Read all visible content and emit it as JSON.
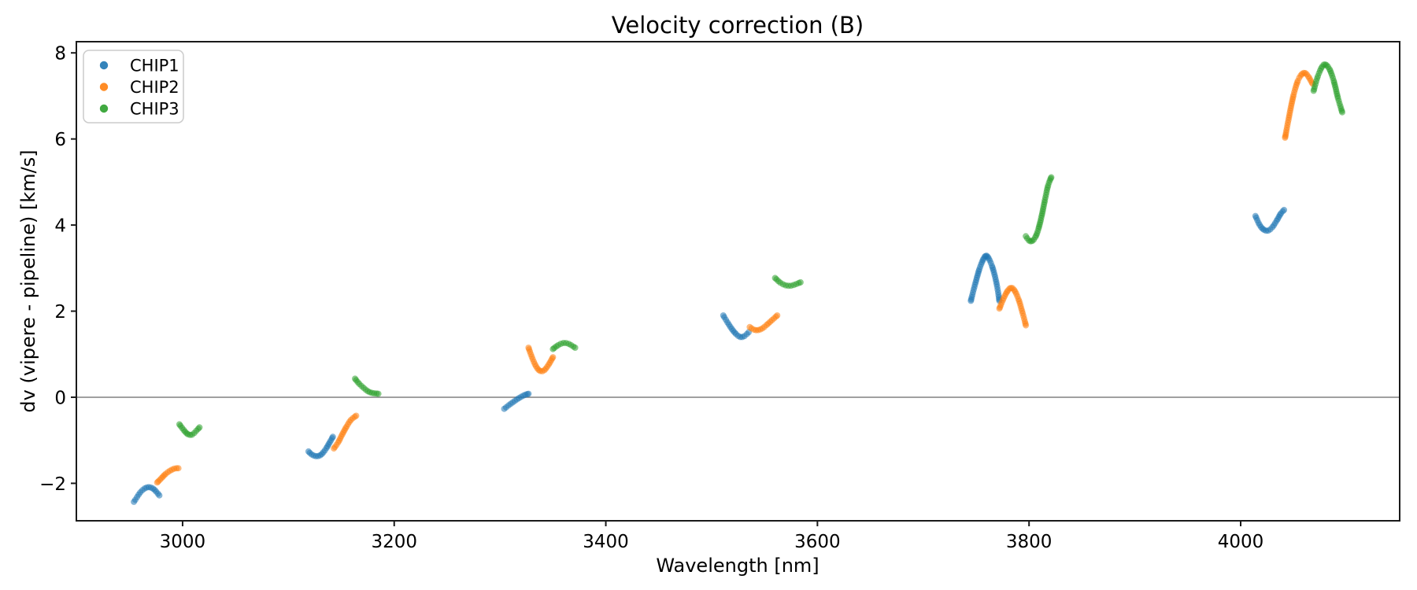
{
  "figure": {
    "background": "#ffffff",
    "spine_color": "#1a1a1a"
  },
  "legend": {
    "position": "upper-left",
    "border_color": "#cccccc",
    "background": "#ffffff",
    "items": [
      {
        "label": "CHIP1",
        "color": "#1f77b4"
      },
      {
        "label": "CHIP2",
        "color": "#ff7f0e"
      },
      {
        "label": "CHIP3",
        "color": "#2ca02c"
      }
    ]
  },
  "chart_data": {
    "type": "scatter",
    "title": "Velocity correction (B)",
    "xlabel": "Wavelength [nm]",
    "ylabel": "dv (vipere - pipeline) [km/s]",
    "xlim": [
      2899.6,
      4150.3
    ],
    "ylim": [
      -2.87,
      8.26
    ],
    "xticks": [
      3000,
      3200,
      3400,
      3600,
      3800,
      4000
    ],
    "xtick_labels": [
      "3000",
      "3200",
      "3400",
      "3600",
      "3800",
      "4000"
    ],
    "yticks": [
      -2,
      0,
      2,
      4,
      6,
      8
    ],
    "ytick_labels": [
      "−2",
      "0",
      "2",
      "4",
      "6",
      "8"
    ],
    "grid": false,
    "zero_line": {
      "y": 0,
      "color": "#808080"
    },
    "legend_position": "upper-left",
    "marker": {
      "radius": 4,
      "opacity": 0.55
    },
    "series": [
      {
        "name": "CHIP1",
        "color": "#1f77b4",
        "segments": [
          [
            [
              2954,
              -2.43
            ],
            [
              2957,
              -2.32
            ],
            [
              2960,
              -2.21
            ],
            [
              2964,
              -2.12
            ],
            [
              2968,
              -2.09
            ],
            [
              2972,
              -2.12
            ],
            [
              2975,
              -2.19
            ],
            [
              2978,
              -2.28
            ]
          ],
          [
            [
              3119,
              -1.26
            ],
            [
              3122,
              -1.33
            ],
            [
              3126,
              -1.37
            ],
            [
              3130,
              -1.35
            ],
            [
              3133,
              -1.28
            ],
            [
              3136,
              -1.18
            ],
            [
              3139,
              -1.05
            ],
            [
              3142,
              -0.92
            ]
          ],
          [
            [
              3304,
              -0.27
            ],
            [
              3308,
              -0.19
            ],
            [
              3312,
              -0.12
            ],
            [
              3316,
              -0.05
            ],
            [
              3320,
              0.01
            ],
            [
              3324,
              0.06
            ],
            [
              3327,
              0.08
            ]
          ],
          [
            [
              3511,
              1.9
            ],
            [
              3515,
              1.74
            ],
            [
              3519,
              1.59
            ],
            [
              3523,
              1.47
            ],
            [
              3527,
              1.4
            ],
            [
              3531,
              1.42
            ],
            [
              3535,
              1.51
            ]
          ],
          [
            [
              3745,
              2.24
            ],
            [
              3749,
              2.62
            ],
            [
              3753,
              2.97
            ],
            [
              3757,
              3.22
            ],
            [
              3759,
              3.28
            ],
            [
              3761,
              3.26
            ],
            [
              3765,
              3.05
            ],
            [
              3769,
              2.68
            ],
            [
              3772,
              2.24
            ]
          ],
          [
            [
              4014,
              4.21
            ],
            [
              4018,
              4.0
            ],
            [
              4022,
              3.89
            ],
            [
              4026,
              3.87
            ],
            [
              4030,
              3.95
            ],
            [
              4034,
              4.1
            ],
            [
              4038,
              4.27
            ],
            [
              4041,
              4.35
            ]
          ]
        ]
      },
      {
        "name": "CHIP2",
        "color": "#ff7f0e",
        "segments": [
          [
            [
              2976,
              -1.98
            ],
            [
              2980,
              -1.88
            ],
            [
              2984,
              -1.78
            ],
            [
              2988,
              -1.71
            ],
            [
              2992,
              -1.66
            ],
            [
              2996,
              -1.65
            ]
          ],
          [
            [
              3143,
              -1.19
            ],
            [
              3147,
              -1.05
            ],
            [
              3151,
              -0.86
            ],
            [
              3155,
              -0.68
            ],
            [
              3159,
              -0.53
            ],
            [
              3164,
              -0.43
            ]
          ],
          [
            [
              3327,
              1.15
            ],
            [
              3330,
              0.94
            ],
            [
              3334,
              0.72
            ],
            [
              3338,
              0.61
            ],
            [
              3342,
              0.63
            ],
            [
              3346,
              0.76
            ],
            [
              3350,
              0.93
            ]
          ],
          [
            [
              3536,
              1.63
            ],
            [
              3540,
              1.57
            ],
            [
              3544,
              1.56
            ],
            [
              3548,
              1.6
            ],
            [
              3552,
              1.68
            ],
            [
              3557,
              1.79
            ],
            [
              3562,
              1.9
            ]
          ],
          [
            [
              3772,
              2.06
            ],
            [
              3776,
              2.3
            ],
            [
              3780,
              2.48
            ],
            [
              3783,
              2.54
            ],
            [
              3786,
              2.49
            ],
            [
              3790,
              2.28
            ],
            [
              3794,
              1.95
            ],
            [
              3797,
              1.67
            ]
          ],
          [
            [
              4042,
              6.03
            ],
            [
              4046,
              6.55
            ],
            [
              4050,
              7.02
            ],
            [
              4054,
              7.35
            ],
            [
              4058,
              7.51
            ],
            [
              4061,
              7.53
            ],
            [
              4064,
              7.45
            ],
            [
              4068,
              7.28
            ]
          ]
        ]
      },
      {
        "name": "CHIP3",
        "color": "#2ca02c",
        "segments": [
          [
            [
              2997,
              -0.63
            ],
            [
              3001,
              -0.76
            ],
            [
              3005,
              -0.86
            ],
            [
              3009,
              -0.87
            ],
            [
              3013,
              -0.78
            ],
            [
              3016,
              -0.7
            ]
          ],
          [
            [
              3163,
              0.43
            ],
            [
              3167,
              0.31
            ],
            [
              3171,
              0.22
            ],
            [
              3175,
              0.14
            ],
            [
              3179,
              0.1
            ],
            [
              3185,
              0.08
            ]
          ],
          [
            [
              3350,
              1.12
            ],
            [
              3355,
              1.21
            ],
            [
              3360,
              1.26
            ],
            [
              3365,
              1.24
            ],
            [
              3371,
              1.15
            ]
          ],
          [
            [
              3560,
              2.77
            ],
            [
              3565,
              2.66
            ],
            [
              3570,
              2.6
            ],
            [
              3575,
              2.59
            ],
            [
              3580,
              2.63
            ],
            [
              3584,
              2.67
            ]
          ],
          [
            [
              3797,
              3.74
            ],
            [
              3800,
              3.64
            ],
            [
              3803,
              3.63
            ],
            [
              3806,
              3.72
            ],
            [
              3809,
              3.92
            ],
            [
              3812,
              4.22
            ],
            [
              3815,
              4.58
            ],
            [
              3818,
              4.92
            ],
            [
              3821,
              5.11
            ]
          ],
          [
            [
              4069,
              7.12
            ],
            [
              4073,
              7.46
            ],
            [
              4077,
              7.68
            ],
            [
              4080,
              7.73
            ],
            [
              4084,
              7.62
            ],
            [
              4088,
              7.35
            ],
            [
              4092,
              6.95
            ],
            [
              4096,
              6.62
            ]
          ]
        ]
      }
    ]
  }
}
